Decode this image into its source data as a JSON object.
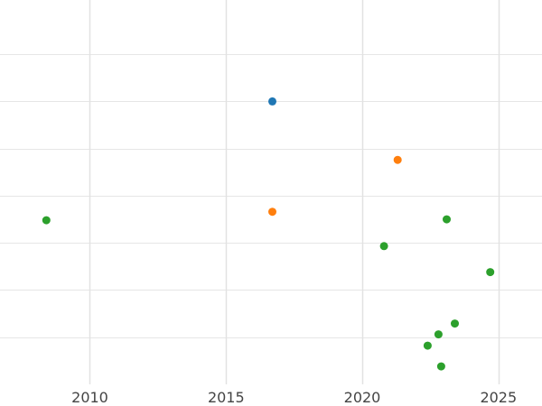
{
  "chart_data": {
    "type": "scatter",
    "title": "",
    "xlabel": "",
    "ylabel": "",
    "x_ticks": [
      2010,
      2015,
      2020,
      2025
    ],
    "x_tick_labels": [
      "2010",
      "2015",
      "2020",
      "2025"
    ],
    "xlim": [
      2006.7,
      2026.6
    ],
    "ylim": [
      0,
      8.15
    ],
    "y_gridlines": [
      1,
      2,
      3,
      4,
      5,
      6,
      7
    ],
    "grid": true,
    "legend": "none",
    "series": [
      {
        "color": "#1f77b4",
        "points": [
          {
            "x": 2016.7,
            "y": 6.0
          }
        ]
      },
      {
        "color": "#ff7f0e",
        "points": [
          {
            "x": 2021.3,
            "y": 4.76
          },
          {
            "x": 2016.7,
            "y": 3.66
          }
        ]
      },
      {
        "color": "#2ca02c",
        "points": [
          {
            "x": 2008.4,
            "y": 3.48
          },
          {
            "x": 2023.1,
            "y": 3.5
          },
          {
            "x": 2020.8,
            "y": 2.93
          },
          {
            "x": 2024.7,
            "y": 2.38
          },
          {
            "x": 2023.4,
            "y": 1.29
          },
          {
            "x": 2022.8,
            "y": 1.06
          },
          {
            "x": 2022.4,
            "y": 0.82
          },
          {
            "x": 2022.9,
            "y": 0.38
          }
        ]
      }
    ]
  }
}
